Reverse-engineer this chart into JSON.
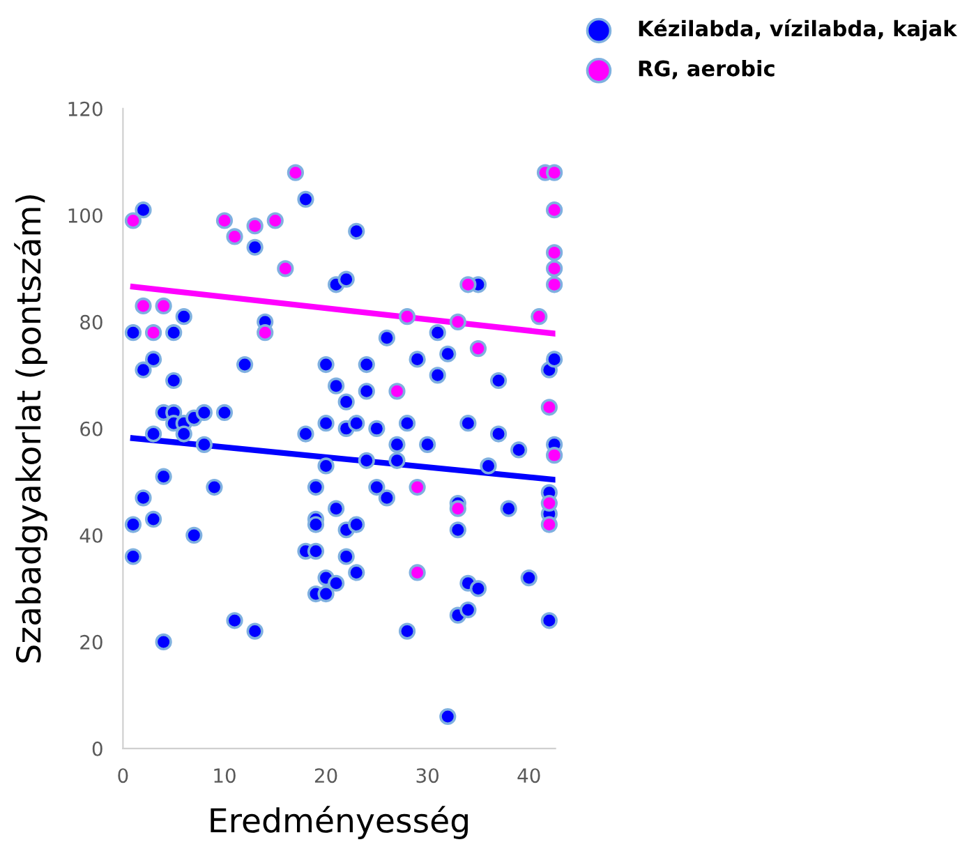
{
  "chart_data": {
    "type": "scatter",
    "xlabel": "Eredményesség",
    "ylabel": "Szabadgyakorlat (pontszám)",
    "xlim": [
      0,
      42.6
    ],
    "ylim": [
      0,
      120
    ],
    "xticks": [
      0,
      10,
      20,
      30,
      40
    ],
    "yticks": [
      0,
      20,
      40,
      60,
      80,
      100,
      120
    ],
    "grid": false,
    "legend": "top right",
    "series": [
      {
        "name": "Kézilabda, vízilabda, kajak",
        "color": "#0000ff",
        "marker": "circle",
        "x": [
          1,
          1,
          1,
          2,
          2,
          2,
          3,
          3,
          3,
          4,
          4,
          4,
          5,
          5,
          5,
          5,
          6,
          6,
          6,
          7,
          7,
          8,
          8,
          9,
          10,
          11,
          12,
          13,
          13,
          14,
          18,
          18,
          18,
          19,
          19,
          19,
          19,
          19,
          20,
          20,
          20,
          20,
          20,
          21,
          21,
          21,
          21,
          22,
          22,
          22,
          22,
          22,
          23,
          23,
          23,
          23,
          24,
          24,
          24,
          25,
          25,
          26,
          26,
          27,
          27,
          28,
          28,
          29,
          30,
          31,
          31,
          32,
          32,
          33,
          33,
          33,
          34,
          34,
          34,
          35,
          35,
          36,
          37,
          37,
          38,
          39,
          40,
          42,
          42,
          42,
          42,
          42.5,
          42.5
        ],
        "values": [
          78,
          42,
          36,
          101,
          71,
          47,
          73,
          59,
          43,
          63,
          51,
          20,
          78,
          69,
          63,
          61,
          81,
          61,
          59,
          62,
          40,
          63,
          57,
          49,
          63,
          24,
          72,
          94,
          22,
          80,
          103,
          59,
          37,
          49,
          43,
          42,
          37,
          29,
          72,
          61,
          53,
          32,
          29,
          87,
          68,
          45,
          31,
          88,
          65,
          60,
          41,
          36,
          97,
          61,
          42,
          33,
          72,
          67,
          54,
          60,
          49,
          77,
          47,
          54,
          57,
          61,
          22,
          73,
          57,
          78,
          70,
          74,
          6,
          41,
          46,
          25,
          61,
          31,
          26,
          87,
          30,
          53,
          69,
          59,
          45,
          56,
          32,
          71,
          48,
          24,
          44,
          73,
          57
        ]
      },
      {
        "name": "RG, aerobic",
        "color": "#ff00ff",
        "marker": "circle",
        "x": [
          1,
          2,
          3,
          4,
          10,
          11,
          13,
          14,
          15,
          16,
          17,
          27,
          28,
          29,
          29,
          33,
          33,
          34,
          35,
          41,
          41.6,
          42,
          42,
          42,
          42.5,
          42.5,
          42.5,
          42.5,
          42.5,
          42.5
        ],
        "values": [
          99,
          83,
          78,
          83,
          99,
          96,
          98,
          78,
          99,
          90,
          108,
          67,
          81,
          33,
          49,
          80,
          45,
          87,
          75,
          81,
          108,
          64,
          46,
          42,
          101,
          93,
          90,
          87,
          55,
          108
        ]
      },
      {
        "type": "line",
        "color": "#0000ff",
        "x": [
          1,
          42.6
        ],
        "values": [
          58.2,
          50.4
        ],
        "line_style": "solid",
        "marker": "none"
      },
      {
        "type": "line",
        "color": "#ff00ff",
        "x": [
          1,
          42.6
        ],
        "values": [
          86.6,
          77.8
        ],
        "line_style": "solid",
        "marker": "none"
      }
    ]
  }
}
